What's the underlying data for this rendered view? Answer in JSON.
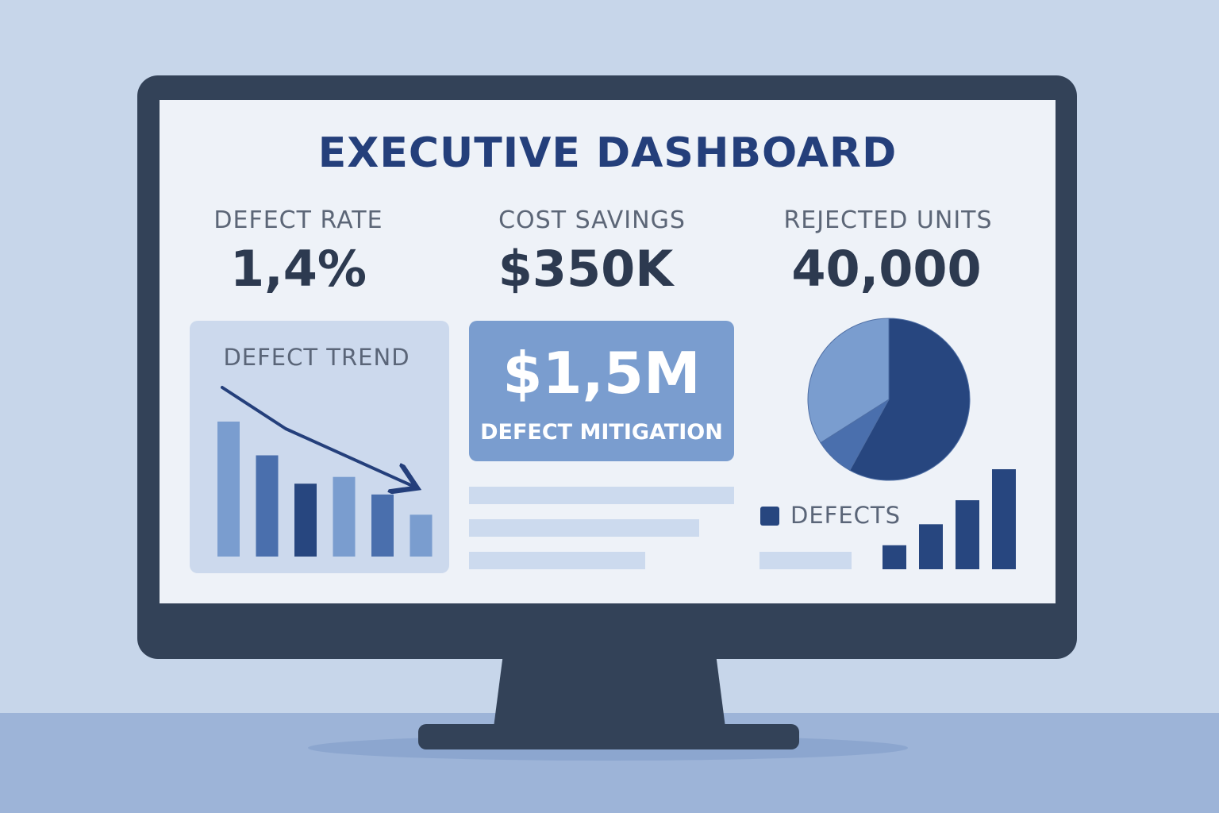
{
  "dashboard": {
    "title": "EXECUTIVE DASHBOARD",
    "kpis": [
      {
        "label": "DEFECT RATE",
        "value": "1,4%"
      },
      {
        "label": "COST SAVINGS",
        "value": "$350K"
      },
      {
        "label": "REJECTED UNITS",
        "value": "40,000"
      }
    ],
    "trend_card": {
      "label": "DEFECT TREND"
    },
    "mitigation_card": {
      "value": "$1,5M",
      "label": "DEFECT MITIGATION"
    },
    "legend": {
      "label": "DEFECTS"
    }
  },
  "colors": {
    "dark_blue": "#27467f",
    "mid_blue": "#4a6fad",
    "light_blue": "#7a9dcf",
    "title_blue": "#243f7b",
    "bezel": "#334258"
  },
  "chart_data": [
    {
      "type": "bar",
      "categories": [
        "",
        "",
        "",
        "",
        "",
        ""
      ],
      "values": [
        100,
        75,
        54,
        59,
        46,
        31
      ],
      "bar_colors": [
        "#7a9dcf",
        "#4a6fad",
        "#27467f",
        "#7a9dcf",
        "#4a6fad",
        "#7a9dcf"
      ],
      "trend_arrow": "down"
    },
    {
      "type": "pie",
      "slices": [
        {
          "value": 58,
          "color": "#27467f"
        },
        {
          "value": 8,
          "color": "#4a6fad"
        },
        {
          "value": 34,
          "color": "#7a9dcf"
        }
      ]
    },
    {
      "type": "bar",
      "categories": [
        "",
        "",
        "",
        ""
      ],
      "values": [
        24,
        45,
        69,
        100
      ],
      "bar_colors": [
        "#27467f",
        "#27467f",
        "#27467f",
        "#27467f"
      ]
    }
  ]
}
